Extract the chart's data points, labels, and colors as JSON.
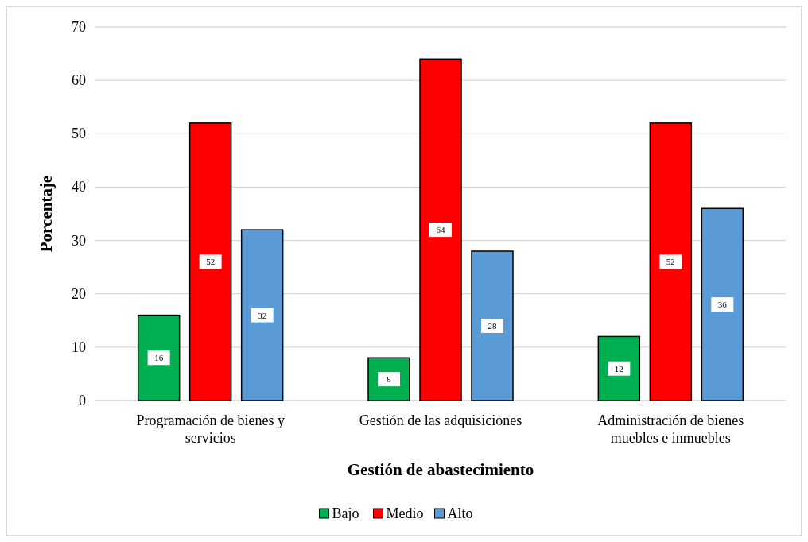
{
  "chart_data": {
    "type": "bar",
    "xlabel": "Gestión de abastecimiento",
    "ylabel": "Porcentaje",
    "categories": [
      "Programación de bienes y servicios",
      "Gestión de las adquisiciones",
      "Administración de bienes muebles e inmuebles"
    ],
    "series": [
      {
        "name": "Bajo",
        "color": "#00b050",
        "values": [
          16,
          8,
          12
        ]
      },
      {
        "name": "Medio",
        "color": "#ff0000",
        "values": [
          52,
          64,
          52
        ]
      },
      {
        "name": "Alto",
        "color": "#5b9bd5",
        "values": [
          32,
          28,
          36
        ]
      }
    ],
    "ylim": [
      0,
      70
    ],
    "yticks": [
      0,
      10,
      20,
      30,
      40,
      50,
      60,
      70
    ],
    "grid": "y",
    "legend": "bottom",
    "data_labels": true
  }
}
